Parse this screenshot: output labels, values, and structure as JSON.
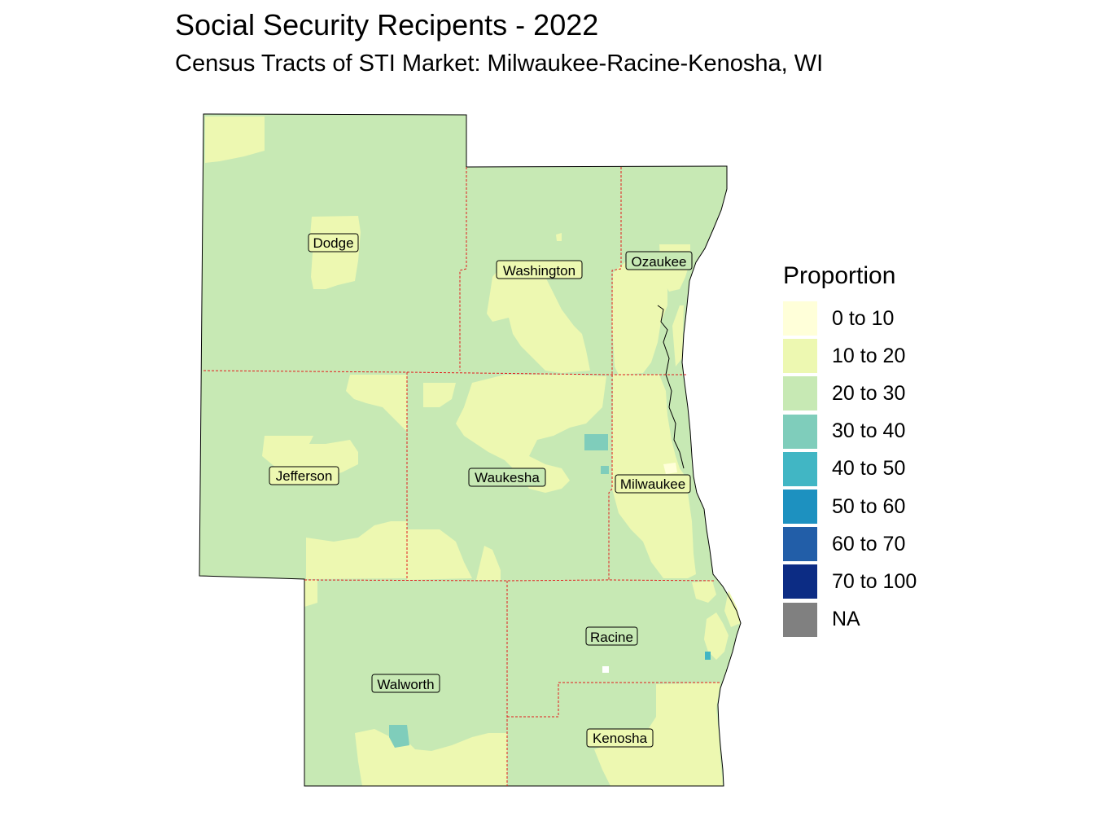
{
  "title": "Social Security Recipents - 2022",
  "subtitle": "Census Tracts of STI Market: Milwaukee-Racine-Kenosha, WI",
  "legend": {
    "title": "Proportion",
    "items": [
      {
        "label": "0 to 10",
        "color": "#ffffd9"
      },
      {
        "label": "10 to 20",
        "color": "#edf8b1"
      },
      {
        "label": "20 to 30",
        "color": "#c7e9b4"
      },
      {
        "label": "30 to 40",
        "color": "#7fcdbb"
      },
      {
        "label": "40 to 50",
        "color": "#41b6c4"
      },
      {
        "label": "50 to 60",
        "color": "#1d91c0"
      },
      {
        "label": "60 to 70",
        "color": "#225ea8"
      },
      {
        "label": "70 to 100",
        "color": "#0c2c84"
      },
      {
        "label": "NA",
        "color": "#808080"
      }
    ]
  },
  "counties": [
    "Dodge",
    "Washington",
    "Ozaukee",
    "Jefferson",
    "Waukesha",
    "Milwaukee",
    "Racine",
    "Walworth",
    "Kenosha"
  ],
  "colors": {
    "boundary": "#e31a1c",
    "base": "#c7e9b4",
    "light": "#edf8b1",
    "mid": "#7fcdbb"
  }
}
